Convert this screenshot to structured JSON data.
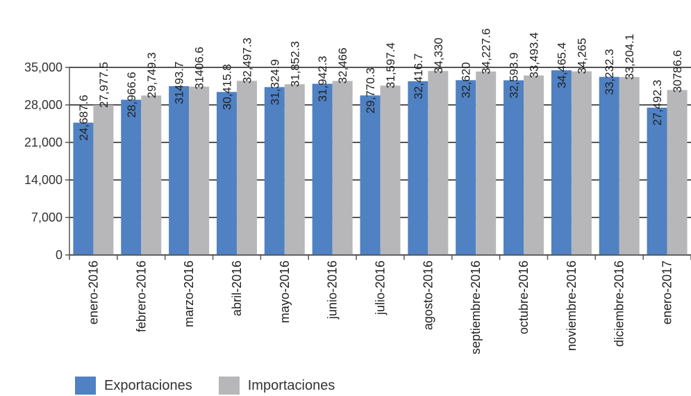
{
  "chart_data": {
    "type": "bar",
    "title": "",
    "xlabel": "",
    "ylabel": "",
    "ylim": [
      0,
      35000
    ],
    "yticks": [
      0,
      7000,
      14000,
      21000,
      28000,
      35000
    ],
    "ytick_labels": [
      "0",
      "7,000",
      "14,000",
      "21,000",
      "28,000",
      "35,000"
    ],
    "grid": true,
    "legend_position": "bottom-left",
    "categories": [
      "enero-2016",
      "febrero-2016",
      "marzo-2016",
      "abril-2016",
      "mayo-2016",
      "junio-2016",
      "julio-2016",
      "agosto-2016",
      "septiembre-2016",
      "octubre-2016",
      "noviembre-2016",
      "diciembre-2016",
      "enero-2017"
    ],
    "series": [
      {
        "name": "Exportaciones",
        "color": "#4f81c3",
        "values": [
          24687.6,
          28966.6,
          31493.7,
          30415.8,
          31324.9,
          31942.3,
          29770.3,
          32416.7,
          32620,
          32593.9,
          34465.4,
          33232.3,
          27492.3
        ],
        "labels": [
          "24,687.6",
          "28,966.6",
          "31493.7",
          "30,415.8",
          "31,324.9",
          "31,942.3",
          "29,770.3",
          "32,416.7",
          "32,620",
          "32,593.9",
          "34,465.4",
          "33,232.3",
          "27,492.3"
        ]
      },
      {
        "name": "Importaciones",
        "color": "#b7b7b9",
        "values": [
          27977.5,
          29749.3,
          31406.6,
          32497.3,
          31852.3,
          32466,
          31597.4,
          34330,
          34227.6,
          33493.4,
          34265,
          33204.1,
          30786.6
        ],
        "labels": [
          "27,977.5",
          "29,749.3",
          "31406.6",
          "32,497.3",
          "31,852.3",
          "32,466",
          "31,597.4",
          "34,330",
          "34,227.6",
          "33,493.4",
          "34,265",
          "33,204.1",
          "30786.6"
        ]
      }
    ]
  }
}
